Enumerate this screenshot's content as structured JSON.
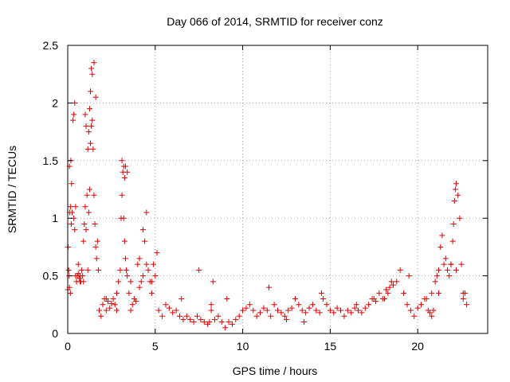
{
  "chart_data": {
    "type": "scatter",
    "title": "Day 066 of 2014, SRMTID for receiver conz",
    "xlabel": "GPS time / hours",
    "ylabel": "SRMTID / TECUs",
    "xlim": [
      0,
      24
    ],
    "ylim": [
      0,
      2.5
    ],
    "x_ticks": [
      0,
      5,
      10,
      15,
      20
    ],
    "x_tick_labels": [
      "0",
      "5",
      "10",
      "15",
      "20"
    ],
    "y_ticks": [
      0,
      0.5,
      1,
      1.5,
      2,
      2.5
    ],
    "y_tick_labels": [
      "0",
      "0.5",
      "1",
      "1.5",
      "2",
      "2.5"
    ],
    "grid": true,
    "marker": "plus",
    "color": "#e00000",
    "series": [
      {
        "name": "SRMTID",
        "x": [
          0.0,
          0.05,
          0.1,
          0.15,
          0.2,
          0.25,
          0.3,
          0.35,
          0.4,
          0.45,
          0.5,
          0.55,
          0.6,
          0.65,
          0.7,
          0.75,
          0.8,
          0.85,
          0.9,
          0.95,
          1.0,
          1.05,
          1.1,
          1.15,
          1.2,
          1.25,
          1.3,
          1.35,
          1.4,
          1.45,
          1.5,
          1.55,
          1.6,
          1.65,
          1.7,
          1.75,
          1.8,
          1.9,
          2.0,
          2.1,
          2.2,
          2.3,
          2.4,
          2.5,
          2.6,
          2.7,
          2.8,
          2.9,
          3.0,
          3.05,
          3.1,
          3.15,
          3.2,
          3.25,
          3.3,
          3.35,
          3.4,
          3.5,
          3.6,
          3.7,
          3.8,
          3.9,
          4.0,
          4.1,
          4.2,
          4.3,
          4.4,
          4.5,
          4.6,
          4.7,
          4.8,
          4.9,
          5.0,
          5.2,
          5.4,
          5.6,
          5.8,
          6.0,
          6.2,
          6.4,
          6.6,
          6.8,
          7.0,
          7.2,
          7.4,
          7.6,
          7.8,
          8.0,
          8.1,
          8.2,
          8.3,
          8.4,
          8.6,
          8.8,
          9.0,
          9.2,
          9.4,
          9.6,
          9.8,
          10.0,
          10.2,
          10.4,
          10.6,
          10.8,
          11.0,
          11.2,
          11.4,
          11.6,
          11.8,
          12.0,
          12.2,
          12.4,
          12.6,
          12.8,
          13.0,
          13.2,
          13.4,
          13.6,
          13.8,
          14.0,
          14.2,
          14.4,
          14.6,
          14.8,
          15.0,
          15.2,
          15.4,
          15.6,
          15.8,
          16.0,
          16.2,
          16.4,
          16.6,
          16.8,
          17.0,
          17.2,
          17.4,
          17.6,
          17.8,
          18.0,
          18.2,
          18.4,
          18.6,
          18.8,
          19.0,
          19.2,
          19.4,
          19.6,
          19.8,
          20.0,
          20.2,
          20.4,
          20.6,
          20.7,
          20.8,
          20.9,
          21.0,
          21.1,
          21.2,
          21.3,
          21.4,
          21.5,
          21.6,
          21.7,
          21.8,
          21.9,
          22.0,
          22.05,
          22.1,
          22.15,
          22.2,
          22.3,
          22.4,
          22.5,
          22.6,
          22.7,
          22.8,
          0.1,
          0.12,
          0.15,
          0.18,
          0.22,
          0.35,
          0.4,
          0.45,
          1.0,
          1.05,
          1.15,
          1.2,
          1.25,
          1.3,
          1.35,
          1.4,
          1.5,
          1.6,
          3.1,
          3.2,
          3.25,
          3.3,
          3.4,
          4.3,
          4.5,
          4.8,
          5.1,
          0.02,
          0.08,
          0.6,
          0.7,
          0.9,
          2.2,
          2.8,
          3.6,
          4.1,
          6.5,
          7.5,
          8.2,
          9.1,
          11.5,
          12.5,
          13.5,
          14.5,
          16.5,
          17.5,
          18.1,
          18.3,
          18.5,
          19.5,
          20.5,
          20.8,
          21.2,
          21.9,
          22.2,
          22.6
        ],
        "y": [
          0.38,
          0.55,
          1.45,
          1.1,
          0.95,
          1.05,
          1.85,
          1.9,
          2.0,
          0.5,
          0.45,
          0.5,
          0.52,
          0.48,
          0.5,
          0.45,
          0.55,
          0.5,
          0.45,
          0.95,
          1.1,
          0.9,
          1.2,
          1.6,
          1.75,
          1.95,
          2.1,
          2.3,
          1.85,
          1.6,
          1.2,
          0.95,
          0.75,
          0.65,
          0.8,
          0.55,
          0.2,
          0.15,
          0.25,
          0.3,
          0.2,
          0.28,
          0.22,
          0.26,
          0.3,
          0.25,
          0.2,
          0.45,
          0.55,
          1.0,
          1.2,
          1.4,
          1.45,
          1.35,
          0.65,
          0.55,
          0.5,
          0.35,
          0.45,
          0.25,
          0.3,
          0.28,
          0.6,
          0.65,
          0.45,
          0.5,
          0.8,
          0.6,
          0.55,
          0.45,
          0.35,
          0.6,
          0.5,
          0.2,
          0.15,
          0.25,
          0.22,
          0.18,
          0.2,
          0.15,
          0.12,
          0.15,
          0.12,
          0.1,
          0.15,
          0.12,
          0.1,
          0.08,
          0.1,
          0.2,
          0.45,
          0.12,
          0.15,
          0.1,
          0.05,
          0.1,
          0.08,
          0.12,
          0.15,
          0.2,
          0.22,
          0.25,
          0.2,
          0.15,
          0.18,
          0.22,
          0.2,
          0.15,
          0.25,
          0.2,
          0.18,
          0.15,
          0.2,
          0.22,
          0.3,
          0.25,
          0.2,
          0.18,
          0.22,
          0.25,
          0.2,
          0.18,
          0.3,
          0.25,
          0.2,
          0.18,
          0.22,
          0.2,
          0.15,
          0.2,
          0.18,
          0.22,
          0.2,
          0.18,
          0.22,
          0.25,
          0.3,
          0.28,
          0.35,
          0.3,
          0.38,
          0.4,
          0.42,
          0.45,
          0.55,
          0.35,
          0.25,
          0.2,
          0.15,
          0.22,
          0.25,
          0.3,
          0.2,
          0.18,
          0.15,
          0.2,
          0.45,
          0.5,
          0.55,
          0.75,
          0.85,
          0.6,
          0.65,
          0.55,
          0.5,
          0.6,
          0.8,
          0.95,
          1.15,
          1.25,
          1.3,
          1.2,
          1.0,
          0.6,
          0.3,
          0.35,
          0.25,
          0.4,
          1.05,
          0.35,
          1.5,
          1.3,
          1.0,
          0.9,
          1.1,
          1.9,
          1.8,
          0.55,
          1.05,
          1.25,
          1.65,
          1.8,
          2.25,
          2.35,
          2.05,
          1.5,
          1.0,
          0.8,
          1.45,
          1.4,
          0.9,
          1.05,
          0.45,
          0.7,
          0.75,
          0.5,
          0.6,
          0.45,
          0.8,
          0.3,
          0.35,
          0.2,
          0.4,
          0.3,
          0.55,
          0.25,
          0.3,
          0.4,
          0.12,
          0.1,
          0.35,
          0.25,
          0.3,
          0.3,
          0.35,
          0.45,
          0.5,
          0.3,
          0.35,
          0.35,
          0.6,
          0.55,
          0.35
        ]
      }
    ]
  }
}
